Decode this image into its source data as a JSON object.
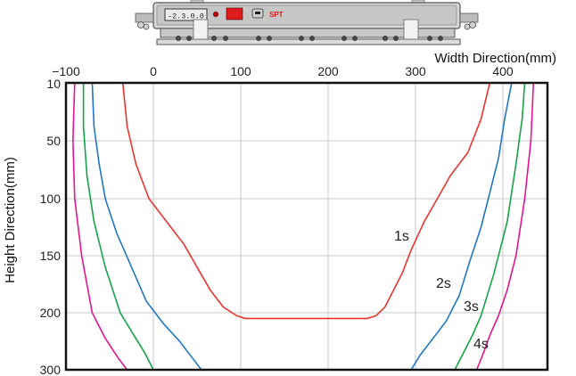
{
  "chart_data": {
    "type": "line",
    "xlabel": "Width Direction(mm)",
    "ylabel": "Height Direction(mm)",
    "xlim": [
      -100,
      450
    ],
    "ylim": [
      10,
      300
    ],
    "y_inverted": true,
    "x_axis_position": "top",
    "grid": true,
    "xticks": [
      "−100",
      "0",
      "100",
      "200",
      "300",
      "400"
    ],
    "yticks": [
      "10",
      "50",
      "100",
      "150",
      "200",
      "300"
    ],
    "series": [
      {
        "name": "1s",
        "color": "#e8352f",
        "left": [
          {
            "x": -35,
            "y": 10
          },
          {
            "x": -30,
            "y": 40
          },
          {
            "x": -20,
            "y": 70
          },
          {
            "x": -5,
            "y": 100
          },
          {
            "x": 15,
            "y": 120
          },
          {
            "x": 35,
            "y": 140
          },
          {
            "x": 50,
            "y": 160
          },
          {
            "x": 65,
            "y": 180
          },
          {
            "x": 80,
            "y": 195
          },
          {
            "x": 95,
            "y": 205
          },
          {
            "x": 105,
            "y": 210
          }
        ],
        "bottom": [
          {
            "x": 105,
            "y": 210
          },
          {
            "x": 245,
            "y": 210
          }
        ],
        "right": [
          {
            "x": 245,
            "y": 210
          },
          {
            "x": 255,
            "y": 205
          },
          {
            "x": 265,
            "y": 195
          },
          {
            "x": 275,
            "y": 180
          },
          {
            "x": 285,
            "y": 165
          },
          {
            "x": 295,
            "y": 145
          },
          {
            "x": 310,
            "y": 120
          },
          {
            "x": 325,
            "y": 100
          },
          {
            "x": 340,
            "y": 80
          },
          {
            "x": 360,
            "y": 60
          },
          {
            "x": 375,
            "y": 35
          },
          {
            "x": 385,
            "y": 10
          }
        ]
      },
      {
        "name": "2s",
        "color": "#1f77c4",
        "left": [
          {
            "x": -70,
            "y": 10
          },
          {
            "x": -68,
            "y": 40
          },
          {
            "x": -62,
            "y": 70
          },
          {
            "x": -55,
            "y": 100
          },
          {
            "x": -42,
            "y": 130
          },
          {
            "x": -25,
            "y": 160
          },
          {
            "x": -8,
            "y": 190
          },
          {
            "x": 12,
            "y": 220
          },
          {
            "x": 30,
            "y": 250
          },
          {
            "x": 45,
            "y": 280
          },
          {
            "x": 55,
            "y": 300
          }
        ],
        "right": [
          {
            "x": 295,
            "y": 300
          },
          {
            "x": 305,
            "y": 275
          },
          {
            "x": 320,
            "y": 245
          },
          {
            "x": 335,
            "y": 215
          },
          {
            "x": 350,
            "y": 185
          },
          {
            "x": 362,
            "y": 155
          },
          {
            "x": 375,
            "y": 125
          },
          {
            "x": 385,
            "y": 95
          },
          {
            "x": 395,
            "y": 65
          },
          {
            "x": 402,
            "y": 35
          },
          {
            "x": 410,
            "y": 10
          }
        ]
      },
      {
        "name": "3s",
        "color": "#16a34a",
        "left": [
          {
            "x": -80,
            "y": 10
          },
          {
            "x": -80,
            "y": 40
          },
          {
            "x": -76,
            "y": 80
          },
          {
            "x": -68,
            "y": 120
          },
          {
            "x": -55,
            "y": 160
          },
          {
            "x": -38,
            "y": 200
          },
          {
            "x": -22,
            "y": 240
          },
          {
            "x": -10,
            "y": 270
          },
          {
            "x": 0,
            "y": 300
          }
        ],
        "right": [
          {
            "x": 345,
            "y": 300
          },
          {
            "x": 355,
            "y": 270
          },
          {
            "x": 365,
            "y": 240
          },
          {
            "x": 375,
            "y": 205
          },
          {
            "x": 390,
            "y": 165
          },
          {
            "x": 405,
            "y": 120
          },
          {
            "x": 415,
            "y": 70
          },
          {
            "x": 422,
            "y": 35
          },
          {
            "x": 425,
            "y": 10
          }
        ]
      },
      {
        "name": "4s",
        "color": "#e6158f",
        "left": [
          {
            "x": -90,
            "y": 10
          },
          {
            "x": -92,
            "y": 50
          },
          {
            "x": -90,
            "y": 100
          },
          {
            "x": -82,
            "y": 150
          },
          {
            "x": -70,
            "y": 200
          },
          {
            "x": -55,
            "y": 245
          },
          {
            "x": -40,
            "y": 280
          },
          {
            "x": -30,
            "y": 300
          }
        ],
        "right": [
          {
            "x": 370,
            "y": 300
          },
          {
            "x": 378,
            "y": 270
          },
          {
            "x": 385,
            "y": 240
          },
          {
            "x": 395,
            "y": 205
          },
          {
            "x": 405,
            "y": 180
          },
          {
            "x": 415,
            "y": 150
          },
          {
            "x": 425,
            "y": 100
          },
          {
            "x": 432,
            "y": 50
          },
          {
            "x": 435,
            "y": 10
          }
        ]
      }
    ]
  },
  "device": {
    "display_text": "-2.3.0.0",
    "badge_text": "SPT"
  }
}
